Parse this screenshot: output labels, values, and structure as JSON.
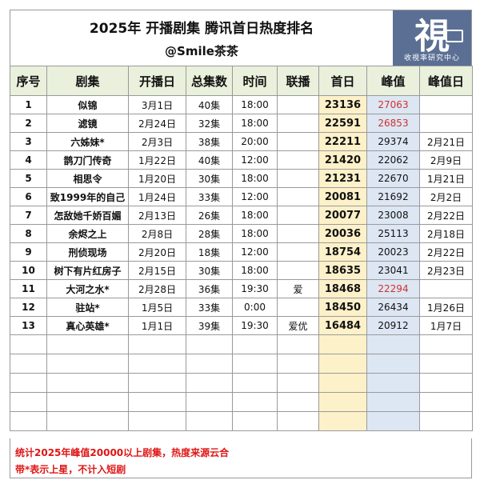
{
  "title": "2025年  开播剧集  腾讯首日热度排名",
  "subtitle": "@Smile茶茶",
  "logo": {
    "glyph": "視",
    "text": "收視率研究中心",
    "color": "#5a6f93"
  },
  "columns": [
    "序号",
    "剧集",
    "开播日",
    "总集数",
    "时间",
    "联播",
    "首日",
    "峰值",
    "峰值日"
  ],
  "rows": [
    {
      "idx": "1",
      "drama": "似锦",
      "start": "3月1日",
      "eps": "40集",
      "time": "18:00",
      "co": "",
      "first": "23136",
      "peak": "27063",
      "peak_day": "",
      "peak_red": true
    },
    {
      "idx": "2",
      "drama": "滤镜",
      "start": "2月24日",
      "eps": "32集",
      "time": "18:00",
      "co": "",
      "first": "22591",
      "peak": "26853",
      "peak_day": "",
      "peak_red": true
    },
    {
      "idx": "3",
      "drama": "六姊妹*",
      "start": "2月3日",
      "eps": "38集",
      "time": "20:00",
      "co": "",
      "first": "22211",
      "peak": "29374",
      "peak_day": "2月21日",
      "peak_red": false
    },
    {
      "idx": "4",
      "drama": "鹊刀门传奇",
      "start": "1月22日",
      "eps": "40集",
      "time": "12:00",
      "co": "",
      "first": "21420",
      "peak": "22062",
      "peak_day": "2月9日",
      "peak_red": false
    },
    {
      "idx": "5",
      "drama": "相思令",
      "start": "1月20日",
      "eps": "30集",
      "time": "18:00",
      "co": "",
      "first": "21231",
      "peak": "22670",
      "peak_day": "1月21日",
      "peak_red": false
    },
    {
      "idx": "6",
      "drama": "致1999年的自己",
      "start": "1月24日",
      "eps": "33集",
      "time": "12:00",
      "co": "",
      "first": "20081",
      "peak": "21692",
      "peak_day": "2月2日",
      "peak_red": false
    },
    {
      "idx": "7",
      "drama": "怎敌她千娇百媚",
      "start": "2月13日",
      "eps": "26集",
      "time": "18:00",
      "co": "",
      "first": "20077",
      "peak": "23008",
      "peak_day": "2月22日",
      "peak_red": false
    },
    {
      "idx": "8",
      "drama": "余烬之上",
      "start": "2月8日",
      "eps": "28集",
      "time": "18:00",
      "co": "",
      "first": "20036",
      "peak": "25113",
      "peak_day": "2月18日",
      "peak_red": false
    },
    {
      "idx": "9",
      "drama": "刑侦现场",
      "start": "2月20日",
      "eps": "18集",
      "time": "12:00",
      "co": "",
      "first": "18754",
      "peak": "20023",
      "peak_day": "2月22日",
      "peak_red": false
    },
    {
      "idx": "10",
      "drama": "树下有片红房子",
      "start": "2月15日",
      "eps": "30集",
      "time": "18:00",
      "co": "",
      "first": "18635",
      "peak": "23041",
      "peak_day": "2月23日",
      "peak_red": false
    },
    {
      "idx": "11",
      "drama": "大河之水*",
      "start": "2月28日",
      "eps": "36集",
      "time": "19:30",
      "co": "爱",
      "first": "18468",
      "peak": "22294",
      "peak_day": "",
      "peak_red": true
    },
    {
      "idx": "12",
      "drama": "驻站*",
      "start": "1月5日",
      "eps": "33集",
      "time": "0:00",
      "co": "",
      "first": "18450",
      "peak": "26434",
      "peak_day": "1月26日",
      "peak_red": false
    },
    {
      "idx": "13",
      "drama": "真心英雄*",
      "start": "1月1日",
      "eps": "39集",
      "time": "19:30",
      "co": "爱优",
      "first": "16484",
      "peak": "20912",
      "peak_day": "1月7日",
      "peak_red": false
    }
  ],
  "empty_rows": 5,
  "notes": [
    "统计2025年峰值20000以上剧集，热度来源云合",
    "带*表示上星，不计入短剧"
  ],
  "colors": {
    "header_bg": "#e9f0dc",
    "first_col_bg": "#fdf1c9",
    "peak_col_bg": "#dde6f3",
    "red_text": "#d0312d",
    "note_red": "#e01515"
  }
}
